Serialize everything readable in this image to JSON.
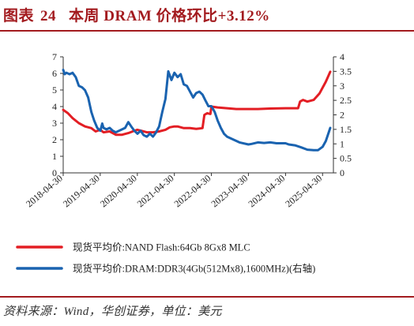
{
  "header": {
    "label": "图表",
    "number": "24",
    "text": "本周 DRAM 价格环比+3.12%"
  },
  "source": "资料来源：Wind，华创证券，单位：美元",
  "colors": {
    "accent": "#a31b1f",
    "nand": "#e31e24",
    "dram": "#1a63b0"
  },
  "chart_data": {
    "type": "line",
    "x_ticks": [
      "2018-04-30",
      "2019-04-30",
      "2020-04-30",
      "2021-04-30",
      "2022-04-30",
      "2023-04-30",
      "2024-04-30",
      "2025-04-30"
    ],
    "left_axis": {
      "ylim": [
        0,
        7
      ],
      "ticks": [
        "0",
        "1",
        "2",
        "3",
        "4",
        "5",
        "6",
        "7"
      ]
    },
    "right_axis": {
      "ylim": [
        0,
        4
      ],
      "ticks": [
        "0",
        "0.5",
        "1",
        "1.5",
        "2",
        "2.5",
        "3",
        "3.5",
        "4"
      ]
    },
    "grid": false,
    "legend_position": "bottom",
    "series": [
      {
        "name": "现货平均价:NAND Flash:64Gb 8Gx8 MLC",
        "axis": "left",
        "color": "#e31e24",
        "points": [
          [
            "2018-04-30",
            3.8
          ],
          [
            "2018-06-15",
            3.6
          ],
          [
            "2018-08-01",
            3.3
          ],
          [
            "2018-10-01",
            3.0
          ],
          [
            "2018-12-01",
            2.8
          ],
          [
            "2019-02-01",
            2.7
          ],
          [
            "2019-03-15",
            2.5
          ],
          [
            "2019-04-30",
            2.6
          ],
          [
            "2019-06-01",
            2.45
          ],
          [
            "2019-08-01",
            2.5
          ],
          [
            "2019-10-01",
            2.3
          ],
          [
            "2019-12-01",
            2.3
          ],
          [
            "2020-02-01",
            2.4
          ],
          [
            "2020-03-15",
            2.5
          ],
          [
            "2020-04-30",
            2.6
          ],
          [
            "2020-06-01",
            2.55
          ],
          [
            "2020-08-01",
            2.45
          ],
          [
            "2020-10-01",
            2.45
          ],
          [
            "2020-12-01",
            2.5
          ],
          [
            "2021-02-01",
            2.6
          ],
          [
            "2021-03-15",
            2.75
          ],
          [
            "2021-04-30",
            2.8
          ],
          [
            "2021-06-01",
            2.8
          ],
          [
            "2021-08-01",
            2.7
          ],
          [
            "2021-10-01",
            2.7
          ],
          [
            "2021-12-01",
            2.65
          ],
          [
            "2022-02-01",
            2.7
          ],
          [
            "2022-02-20",
            3.5
          ],
          [
            "2022-03-20",
            3.6
          ],
          [
            "2022-04-20",
            3.55
          ],
          [
            "2022-04-30",
            4.0
          ],
          [
            "2022-07-01",
            3.95
          ],
          [
            "2022-10-01",
            3.9
          ],
          [
            "2023-01-01",
            3.85
          ],
          [
            "2023-04-30",
            3.85
          ],
          [
            "2023-08-01",
            3.85
          ],
          [
            "2023-12-01",
            3.88
          ],
          [
            "2024-04-30",
            3.9
          ],
          [
            "2024-07-01",
            3.9
          ],
          [
            "2024-09-01",
            3.9
          ],
          [
            "2024-09-20",
            4.3
          ],
          [
            "2024-10-20",
            4.4
          ],
          [
            "2024-12-01",
            4.3
          ],
          [
            "2025-02-01",
            4.4
          ],
          [
            "2025-04-01",
            4.8
          ],
          [
            "2025-06-01",
            5.5
          ],
          [
            "2025-07-15",
            6.1
          ]
        ]
      },
      {
        "name": "现货平均价:DRAM:DDR3(4Gb(512Mx8),1600MHz)(右轴)",
        "axis": "right",
        "color": "#1a63b0",
        "points": [
          [
            "2018-04-30",
            3.55
          ],
          [
            "2018-05-15",
            3.4
          ],
          [
            "2018-06-01",
            3.45
          ],
          [
            "2018-07-01",
            3.4
          ],
          [
            "2018-08-01",
            3.45
          ],
          [
            "2018-09-01",
            3.3
          ],
          [
            "2018-10-01",
            3.0
          ],
          [
            "2018-11-01",
            2.95
          ],
          [
            "2018-12-01",
            2.85
          ],
          [
            "2019-01-01",
            2.6
          ],
          [
            "2019-02-01",
            2.1
          ],
          [
            "2019-03-01",
            1.8
          ],
          [
            "2019-04-01",
            1.55
          ],
          [
            "2019-05-01",
            1.45
          ],
          [
            "2019-05-20",
            1.7
          ],
          [
            "2019-06-01",
            1.55
          ],
          [
            "2019-07-01",
            1.5
          ],
          [
            "2019-08-01",
            1.55
          ],
          [
            "2019-09-01",
            1.45
          ],
          [
            "2019-10-01",
            1.4
          ],
          [
            "2019-11-01",
            1.45
          ],
          [
            "2019-12-01",
            1.5
          ],
          [
            "2020-01-01",
            1.55
          ],
          [
            "2020-02-01",
            1.75
          ],
          [
            "2020-03-01",
            1.6
          ],
          [
            "2020-04-01",
            1.45
          ],
          [
            "2020-05-01",
            1.35
          ],
          [
            "2020-06-01",
            1.45
          ],
          [
            "2020-07-01",
            1.3
          ],
          [
            "2020-08-01",
            1.25
          ],
          [
            "2020-09-01",
            1.35
          ],
          [
            "2020-10-01",
            1.25
          ],
          [
            "2020-11-01",
            1.4
          ],
          [
            "2020-12-01",
            1.6
          ],
          [
            "2021-01-01",
            2.1
          ],
          [
            "2021-02-01",
            2.55
          ],
          [
            "2021-03-01",
            3.5
          ],
          [
            "2021-04-01",
            3.2
          ],
          [
            "2021-04-30",
            3.45
          ],
          [
            "2021-06-01",
            3.3
          ],
          [
            "2021-07-01",
            3.4
          ],
          [
            "2021-08-01",
            3.05
          ],
          [
            "2021-09-01",
            3.0
          ],
          [
            "2021-10-01",
            2.8
          ],
          [
            "2021-11-01",
            2.6
          ],
          [
            "2021-12-01",
            2.75
          ],
          [
            "2022-01-01",
            2.8
          ],
          [
            "2022-02-01",
            2.7
          ],
          [
            "2022-03-01",
            2.5
          ],
          [
            "2022-04-01",
            2.3
          ],
          [
            "2022-04-30",
            2.3
          ],
          [
            "2022-06-01",
            2.1
          ],
          [
            "2022-07-01",
            1.8
          ],
          [
            "2022-08-01",
            1.55
          ],
          [
            "2022-09-01",
            1.35
          ],
          [
            "2022-10-01",
            1.25
          ],
          [
            "2022-12-01",
            1.15
          ],
          [
            "2023-02-01",
            1.05
          ],
          [
            "2023-04-30",
            0.98
          ],
          [
            "2023-06-01",
            1.0
          ],
          [
            "2023-08-01",
            1.05
          ],
          [
            "2023-10-01",
            1.03
          ],
          [
            "2023-12-01",
            1.05
          ],
          [
            "2024-02-01",
            1.02
          ],
          [
            "2024-04-30",
            1.02
          ],
          [
            "2024-06-01",
            0.98
          ],
          [
            "2024-08-01",
            0.95
          ],
          [
            "2024-10-01",
            0.88
          ],
          [
            "2024-12-01",
            0.8
          ],
          [
            "2025-02-01",
            0.78
          ],
          [
            "2025-03-15",
            0.78
          ],
          [
            "2025-05-01",
            0.9
          ],
          [
            "2025-06-01",
            1.1
          ],
          [
            "2025-07-15",
            1.55
          ]
        ]
      }
    ]
  }
}
